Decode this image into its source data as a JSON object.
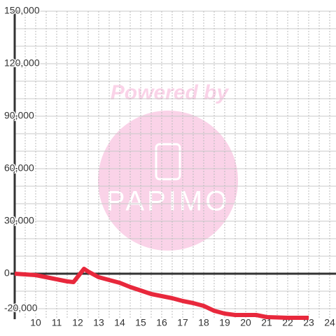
{
  "chart_data": {
    "type": "line",
    "watermark": {
      "top": "Powered by",
      "logo": "PAPIMO"
    },
    "x": [
      9,
      10,
      11,
      11.5,
      11.8,
      12.3,
      12.5,
      13,
      13.5,
      14,
      14.5,
      15,
      15.5,
      16,
      16.5,
      17,
      17.5,
      18,
      18.5,
      19,
      19.5,
      20,
      20.5,
      21,
      22,
      23
    ],
    "series": [
      {
        "color": "#e8283c",
        "values": [
          0,
          -800,
          -3200,
          -4400,
          -4800,
          2800,
          1200,
          -2000,
          -3600,
          -5200,
          -7600,
          -9600,
          -11600,
          -12800,
          -14000,
          -15600,
          -16800,
          -18400,
          -21200,
          -22800,
          -23600,
          -23600,
          -23600,
          -24800,
          -25200,
          -25200
        ]
      }
    ],
    "xlim": [
      9,
      24.3
    ],
    "xticks": [
      10,
      11,
      12,
      13,
      14,
      15,
      16,
      17,
      18,
      19,
      20,
      21,
      22,
      23,
      24
    ],
    "xgrid": [
      9.5,
      10,
      10.5,
      11,
      11.5,
      12,
      12.5,
      13,
      13.5,
      14,
      14.5,
      15,
      15.5,
      16,
      16.5,
      17,
      17.5,
      18,
      18.5,
      19,
      19.5,
      20,
      20.5,
      21,
      21.5,
      22,
      22.5,
      23,
      23.5,
      24
    ],
    "ylim": [
      -26000,
      150000
    ],
    "yticks": [
      {
        "value": 150000,
        "label": "150,000"
      },
      {
        "value": 120000,
        "label": "120,000"
      },
      {
        "value": 90000,
        "label": "90,000"
      },
      {
        "value": 60000,
        "label": "60,000"
      },
      {
        "value": 30000,
        "label": "30,000"
      },
      0,
      {
        "value": -20000,
        "label": "-20,000"
      }
    ],
    "ygrid": [
      -20000,
      -10000,
      10000,
      20000,
      30000,
      40000,
      50000,
      60000,
      70000,
      80000,
      90000,
      100000,
      110000,
      120000,
      130000,
      140000,
      150000
    ],
    "grid": true
  }
}
